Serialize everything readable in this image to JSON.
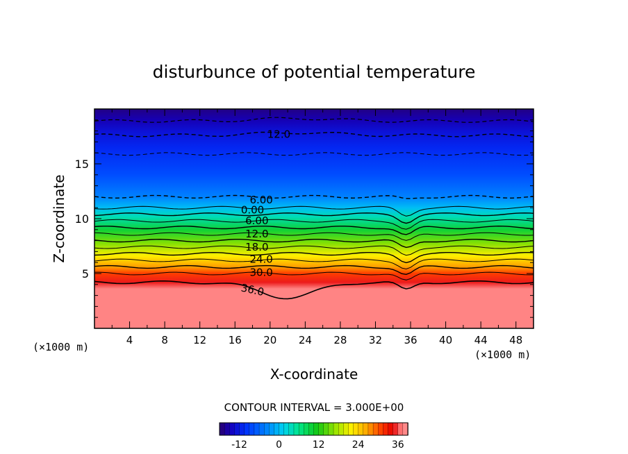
{
  "chart_data": {
    "type": "heatmap",
    "title": "disturbunce of potential temperature",
    "xlabel": "X-coordinate",
    "ylabel": "Z-coordinate",
    "x_unit_left": "(×1000 m)",
    "x_unit_right": "(×1000 m)",
    "xlim": [
      0,
      50
    ],
    "ylim": [
      0,
      20
    ],
    "x_ticks": [
      "4",
      "8",
      "12",
      "16",
      "20",
      "24",
      "28",
      "32",
      "36",
      "40",
      "44",
      "48"
    ],
    "y_ticks": [
      "5",
      "10",
      "15"
    ],
    "contour_interval_label": "CONTOUR INTERVAL = 3.000E+00",
    "colorbar": {
      "range": [
        -18,
        39
      ],
      "ticks": [
        "-12",
        "0",
        "12",
        "24",
        "36"
      ]
    },
    "contour_labels": [
      {
        "text": "12.0",
        "x": 21,
        "z": 17.7
      },
      {
        "text": "6.00",
        "x": 19,
        "z": 11.7
      },
      {
        "text": "0.00",
        "x": 18,
        "z": 10.8
      },
      {
        "text": "6.00",
        "x": 18.5,
        "z": 9.8
      },
      {
        "text": "12.0",
        "x": 18.5,
        "z": 8.6
      },
      {
        "text": "18.0",
        "x": 18.5,
        "z": 7.4
      },
      {
        "text": "24.0",
        "x": 19,
        "z": 6.3
      },
      {
        "text": "30.0",
        "x": 19,
        "z": 5.1
      },
      {
        "text": "36.0",
        "x": 18,
        "z": 3.5
      }
    ],
    "field_profile": [
      {
        "z": 0.0,
        "value": 38
      },
      {
        "z": 3.6,
        "value": 38
      },
      {
        "z": 4.2,
        "value": 35
      },
      {
        "z": 5.0,
        "value": 31
      },
      {
        "z": 5.6,
        "value": 27
      },
      {
        "z": 6.6,
        "value": 22
      },
      {
        "z": 7.8,
        "value": 16
      },
      {
        "z": 9.0,
        "value": 10
      },
      {
        "z": 10.2,
        "value": 4
      },
      {
        "z": 11.0,
        "value": 0
      },
      {
        "z": 12.0,
        "value": -4
      },
      {
        "z": 14.0,
        "value": -8
      },
      {
        "z": 16.5,
        "value": -11
      },
      {
        "z": 18.0,
        "value": -13
      },
      {
        "z": 19.0,
        "value": -15
      },
      {
        "z": 20.0,
        "value": -17
      }
    ]
  }
}
